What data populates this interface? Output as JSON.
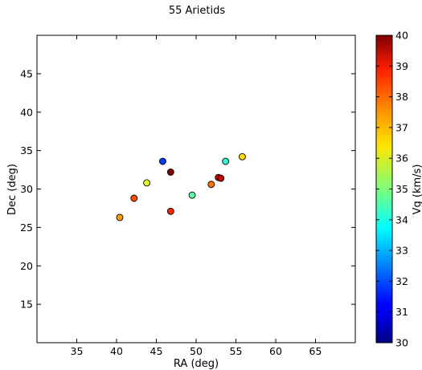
{
  "chart_data": {
    "type": "scatter",
    "title": "55 Arietids",
    "xlabel": "RA (deg)",
    "ylabel": "Dec (deg)",
    "xlim": [
      30,
      70
    ],
    "ylim": [
      10,
      50
    ],
    "xticks": [
      35,
      40,
      45,
      50,
      55,
      60,
      65
    ],
    "yticks": [
      15,
      20,
      25,
      30,
      35,
      40,
      45
    ],
    "grid": false,
    "colorbar": {
      "label": "Vg (km/s)",
      "min": 30,
      "max": 40,
      "ticks": [
        30,
        31,
        32,
        33,
        34,
        35,
        36,
        37,
        38,
        39,
        40
      ],
      "colormap": "jet"
    },
    "points": [
      {
        "x": 40.4,
        "y": 26.3,
        "c": 37.2
      },
      {
        "x": 42.2,
        "y": 28.8,
        "c": 38.0
      },
      {
        "x": 43.8,
        "y": 30.8,
        "c": 36.0
      },
      {
        "x": 45.8,
        "y": 33.6,
        "c": 31.8
      },
      {
        "x": 46.8,
        "y": 32.2,
        "c": 40.0
      },
      {
        "x": 46.8,
        "y": 27.1,
        "c": 38.4
      },
      {
        "x": 49.5,
        "y": 29.2,
        "c": 34.6
      },
      {
        "x": 51.9,
        "y": 30.6,
        "c": 37.6
      },
      {
        "x": 52.8,
        "y": 31.5,
        "c": 39.0
      },
      {
        "x": 53.1,
        "y": 31.4,
        "c": 39.3
      },
      {
        "x": 53.7,
        "y": 33.6,
        "c": 34.2
      },
      {
        "x": 55.8,
        "y": 34.2,
        "c": 36.6
      }
    ]
  }
}
